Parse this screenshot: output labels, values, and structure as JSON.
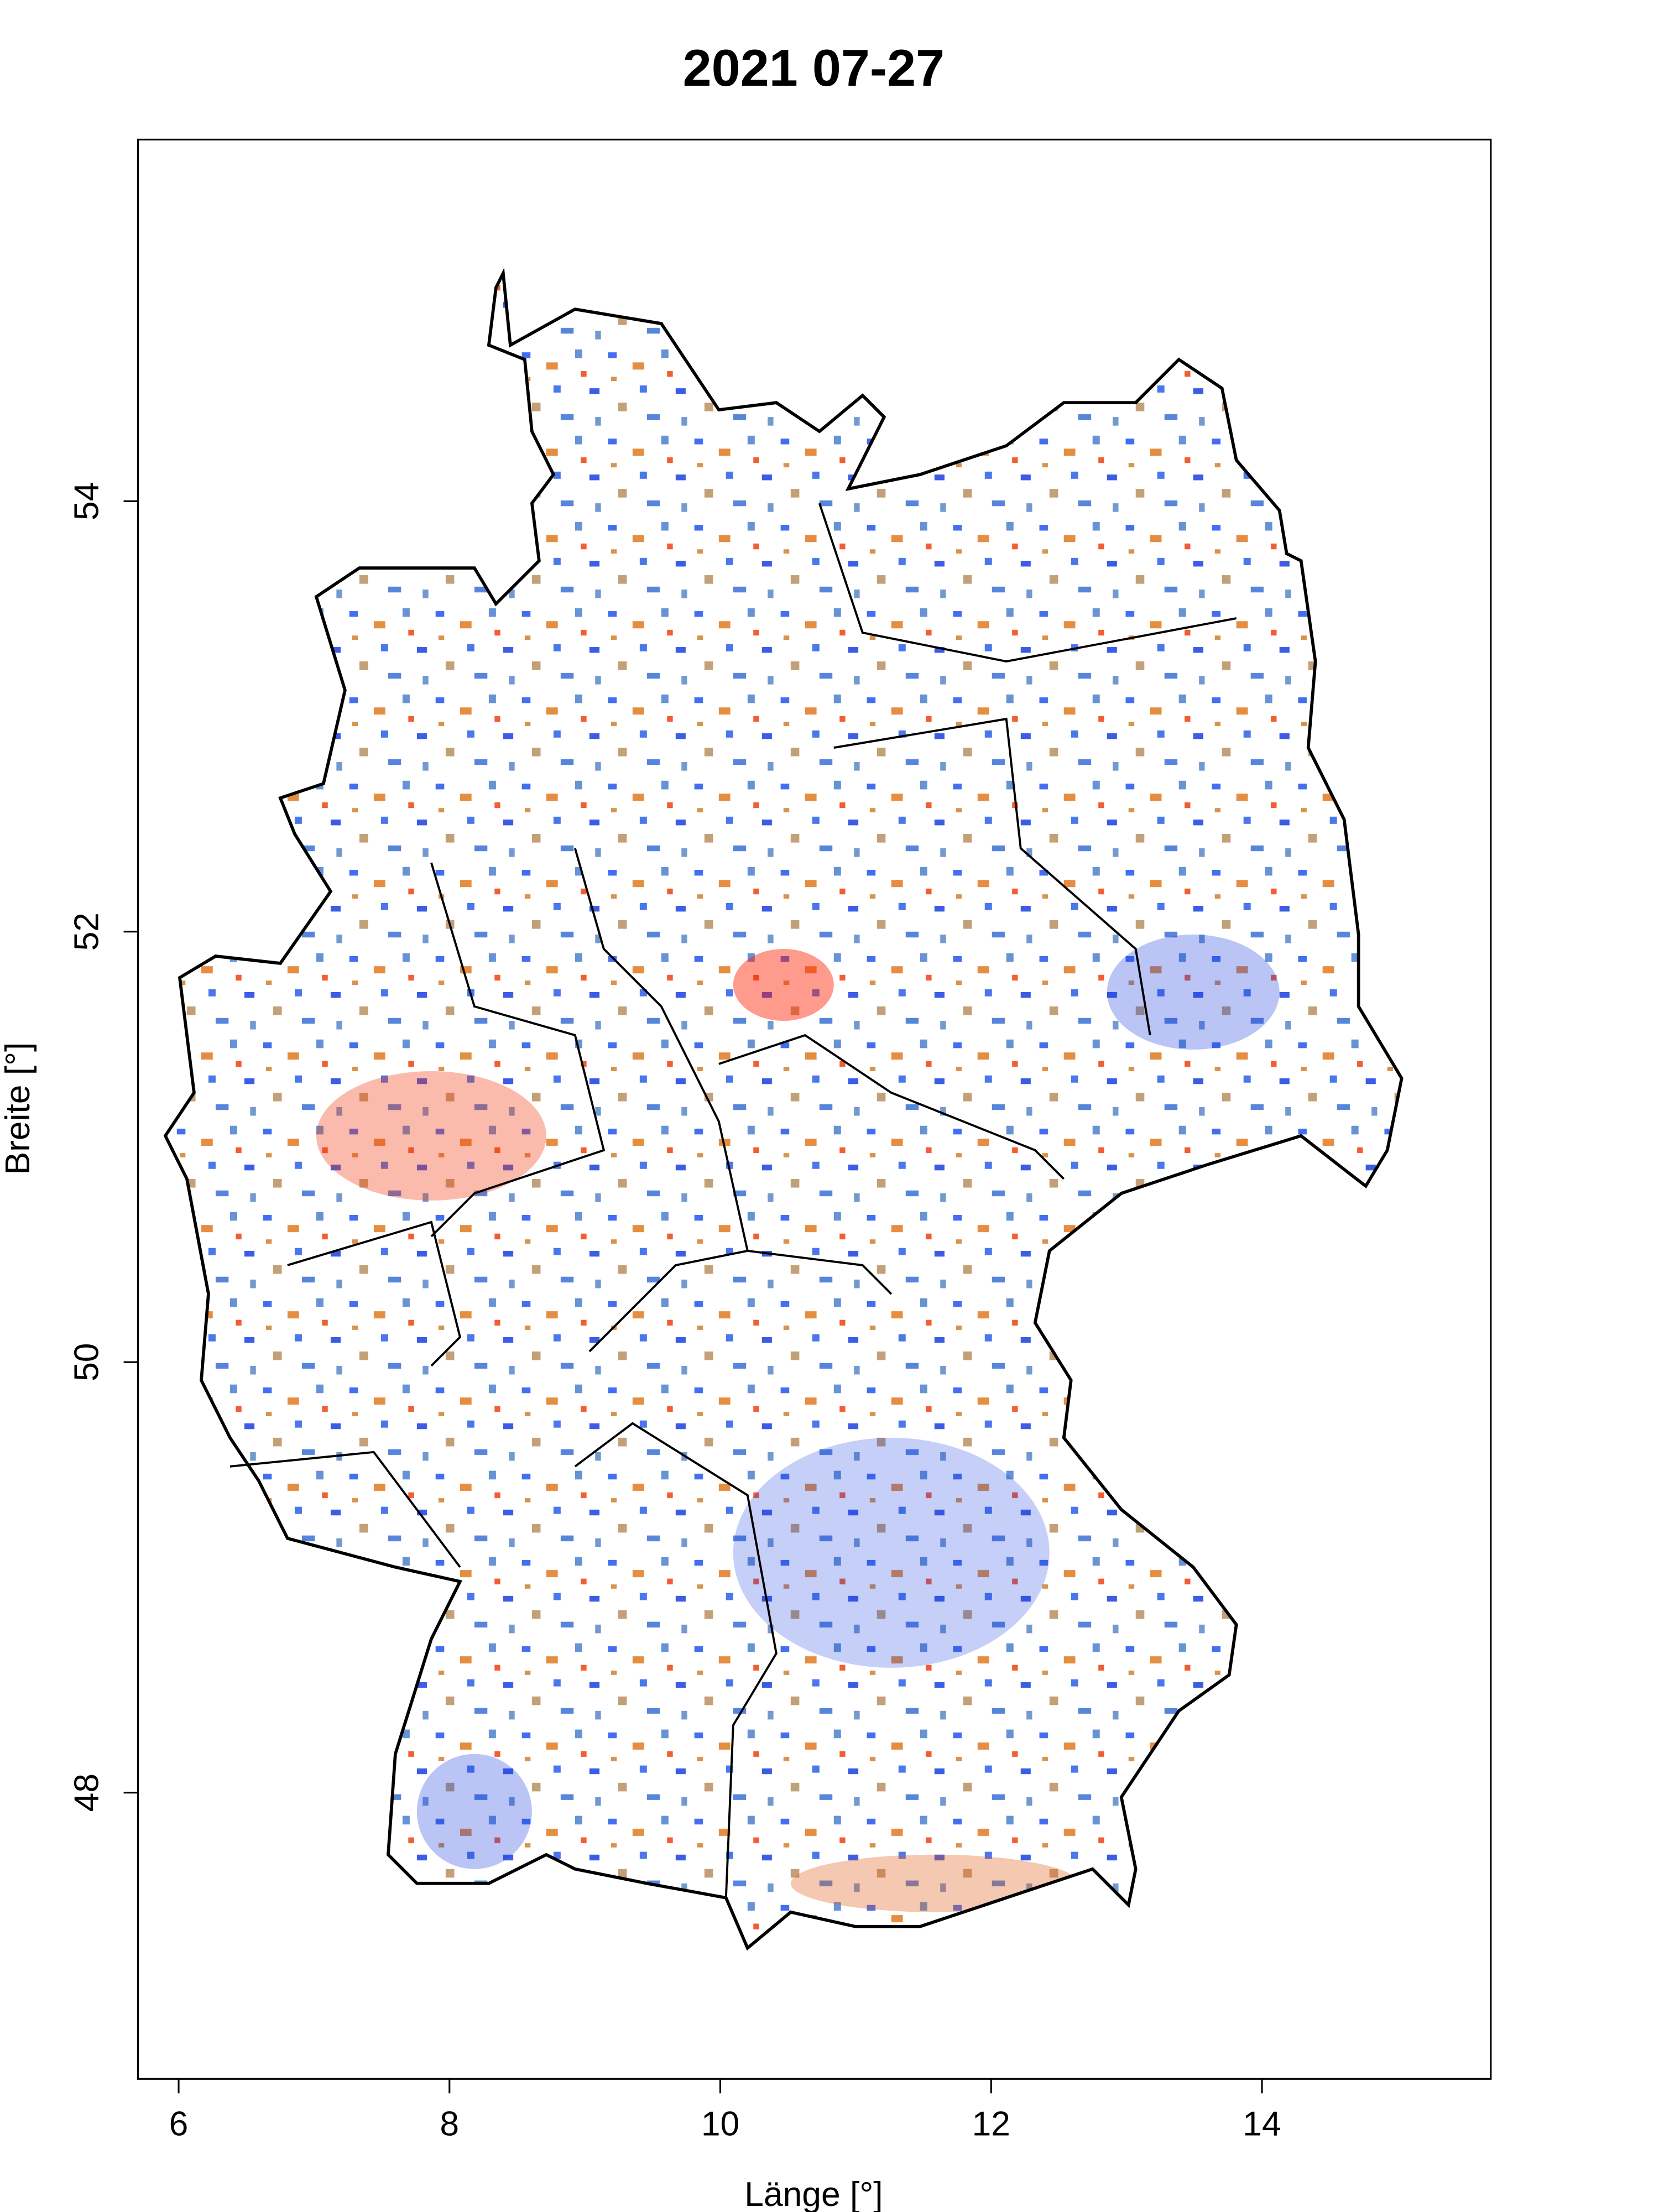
{
  "chart_data": {
    "type": "map",
    "title": "2021 07-27",
    "x_label": "Länge [°]",
    "y_label": "Breite [°]",
    "xlim": [
      5.7,
      15.69
    ],
    "ylim": [
      46.67,
      55.68
    ],
    "xticks": [
      6,
      8,
      10,
      12,
      14
    ],
    "yticks": [
      48,
      50,
      52,
      54
    ]
  }
}
